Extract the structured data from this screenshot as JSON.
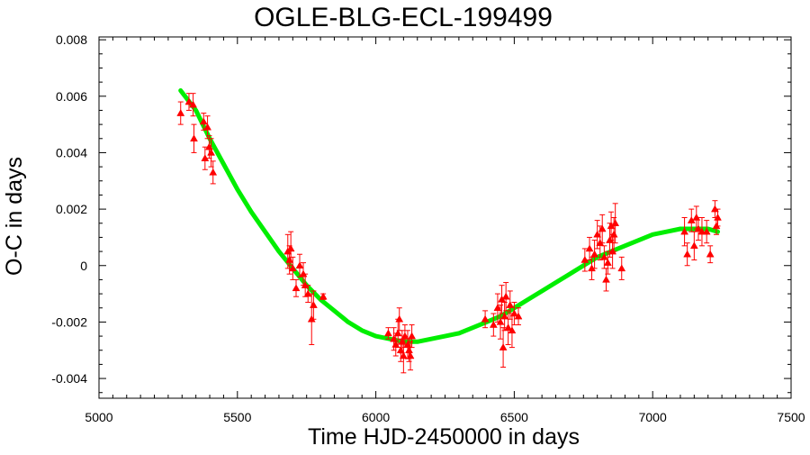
{
  "chart_data": {
    "type": "scatter",
    "title": "OGLE-BLG-ECL-199499",
    "xlabel": "Time HJD-2450000 in days",
    "ylabel": "O-C in days",
    "xlim": [
      5000,
      7500
    ],
    "ylim": [
      -0.0047,
      0.0081
    ],
    "x_ticks": [
      5000,
      5500,
      6000,
      6500,
      7000,
      7500
    ],
    "x_tick_labels": [
      "5000",
      "5500",
      "6000",
      "6500",
      "7000",
      "7500"
    ],
    "y_ticks": [
      0.008,
      0.006,
      0.004,
      0.002,
      0,
      -0.002,
      -0.004
    ],
    "y_tick_labels": [
      "0.008",
      "0.006",
      "0.004",
      "0.002",
      "0",
      "-0.002",
      "-0.004"
    ],
    "grid": false,
    "legend": "none",
    "colors": {
      "points": "#ff0000",
      "fit": "#00ee00"
    },
    "series": [
      {
        "kind": "points-with-errors",
        "points": [
          {
            "x": 5295,
            "y": 0.0054,
            "err": 0.0004
          },
          {
            "x": 5325,
            "y": 0.0058,
            "err": 0.0003
          },
          {
            "x": 5340,
            "y": 0.0057,
            "err": 0.0004
          },
          {
            "x": 5343,
            "y": 0.0045,
            "err": 0.0005
          },
          {
            "x": 5378,
            "y": 0.0051,
            "err": 0.0003
          },
          {
            "x": 5383,
            "y": 0.0038,
            "err": 0.0004
          },
          {
            "x": 5392,
            "y": 0.0049,
            "err": 0.0004
          },
          {
            "x": 5398,
            "y": 0.0042,
            "err": 0.0004
          },
          {
            "x": 5405,
            "y": 0.004,
            "err": 0.0005
          },
          {
            "x": 5412,
            "y": 0.0033,
            "err": 0.0004
          },
          {
            "x": 5682,
            "y": 0.0005,
            "err": 0.0006
          },
          {
            "x": 5688,
            "y": 0.0002,
            "err": 0.0005
          },
          {
            "x": 5693,
            "y": 0.0006,
            "err": 0.0006
          },
          {
            "x": 5700,
            "y": -0.0001,
            "err": 0.0004
          },
          {
            "x": 5712,
            "y": -0.0008,
            "err": 0.0003
          },
          {
            "x": 5725,
            "y": 0.0,
            "err": 0.0004
          },
          {
            "x": 5738,
            "y": -0.0003,
            "err": 0.0004
          },
          {
            "x": 5745,
            "y": -0.0007,
            "err": 0.0004
          },
          {
            "x": 5755,
            "y": -0.001,
            "err": 0.0003
          },
          {
            "x": 5768,
            "y": -0.0019,
            "err": 0.0009
          },
          {
            "x": 5775,
            "y": -0.0014,
            "err": 0.0005
          },
          {
            "x": 5810,
            "y": -0.0011,
            "err": 0.0001
          },
          {
            "x": 6045,
            "y": -0.0024,
            "err": 0.0002
          },
          {
            "x": 6065,
            "y": -0.0026,
            "err": 0.0004
          },
          {
            "x": 6072,
            "y": -0.0028,
            "err": 0.0004
          },
          {
            "x": 6080,
            "y": -0.0024,
            "err": 0.0005
          },
          {
            "x": 6085,
            "y": -0.0019,
            "err": 0.0004
          },
          {
            "x": 6090,
            "y": -0.003,
            "err": 0.0004
          },
          {
            "x": 6095,
            "y": -0.0027,
            "err": 0.0004
          },
          {
            "x": 6100,
            "y": -0.0032,
            "err": 0.0006
          },
          {
            "x": 6105,
            "y": -0.0025,
            "err": 0.0004
          },
          {
            "x": 6115,
            "y": -0.0028,
            "err": 0.0005
          },
          {
            "x": 6120,
            "y": -0.003,
            "err": 0.0004
          },
          {
            "x": 6125,
            "y": -0.0032,
            "err": 0.0005
          },
          {
            "x": 6130,
            "y": -0.0025,
            "err": 0.0004
          },
          {
            "x": 6395,
            "y": -0.0019,
            "err": 0.0003
          },
          {
            "x": 6425,
            "y": -0.0021,
            "err": 0.0004
          },
          {
            "x": 6440,
            "y": -0.0015,
            "err": 0.0005
          },
          {
            "x": 6450,
            "y": -0.002,
            "err": 0.0006
          },
          {
            "x": 6455,
            "y": -0.0012,
            "err": 0.0005
          },
          {
            "x": 6460,
            "y": -0.0029,
            "err": 0.0007
          },
          {
            "x": 6465,
            "y": -0.0018,
            "err": 0.0005
          },
          {
            "x": 6470,
            "y": -0.0011,
            "err": 0.0005
          },
          {
            "x": 6478,
            "y": -0.0022,
            "err": 0.0006
          },
          {
            "x": 6485,
            "y": -0.0014,
            "err": 0.0005
          },
          {
            "x": 6492,
            "y": -0.0023,
            "err": 0.0006
          },
          {
            "x": 6500,
            "y": -0.0017,
            "err": 0.0004
          },
          {
            "x": 6515,
            "y": -0.0018,
            "err": 0.0003
          },
          {
            "x": 6755,
            "y": 0.0002,
            "err": 0.0004
          },
          {
            "x": 6772,
            "y": 0.0006,
            "err": 0.0004
          },
          {
            "x": 6780,
            "y": -0.0001,
            "err": 0.0004
          },
          {
            "x": 6790,
            "y": 0.0004,
            "err": 0.0005
          },
          {
            "x": 6800,
            "y": 0.0011,
            "err": 0.0005
          },
          {
            "x": 6810,
            "y": 0.0008,
            "err": 0.0006
          },
          {
            "x": 6818,
            "y": 0.0013,
            "err": 0.0005
          },
          {
            "x": 6825,
            "y": 0.0003,
            "err": 0.0004
          },
          {
            "x": 6832,
            "y": -0.0005,
            "err": 0.0004
          },
          {
            "x": 6838,
            "y": 0.0001,
            "err": 0.0004
          },
          {
            "x": 6845,
            "y": 0.0009,
            "err": 0.0006
          },
          {
            "x": 6850,
            "y": 0.0014,
            "err": 0.0005
          },
          {
            "x": 6855,
            "y": 0.0005,
            "err": 0.0006
          },
          {
            "x": 6860,
            "y": 0.0011,
            "err": 0.0006
          },
          {
            "x": 6865,
            "y": 0.0015,
            "err": 0.0007
          },
          {
            "x": 6888,
            "y": -0.0001,
            "err": 0.0004
          },
          {
            "x": 7115,
            "y": 0.0012,
            "err": 0.0005
          },
          {
            "x": 7125,
            "y": 0.0004,
            "err": 0.0004
          },
          {
            "x": 7140,
            "y": 0.0016,
            "err": 0.0004
          },
          {
            "x": 7150,
            "y": 0.0007,
            "err": 0.0005
          },
          {
            "x": 7158,
            "y": 0.0017,
            "err": 0.0004
          },
          {
            "x": 7165,
            "y": 0.0013,
            "err": 0.0004
          },
          {
            "x": 7178,
            "y": 0.0012,
            "err": 0.0005
          },
          {
            "x": 7195,
            "y": 0.0012,
            "err": 0.0004
          },
          {
            "x": 7208,
            "y": 0.0004,
            "err": 0.0003
          },
          {
            "x": 7225,
            "y": 0.002,
            "err": 0.0003
          },
          {
            "x": 7230,
            "y": 0.0014,
            "err": 0.0003
          },
          {
            "x": 7235,
            "y": 0.0017,
            "err": 0.0003
          }
        ]
      },
      {
        "kind": "fit-curve",
        "x": [
          5295,
          5350,
          5400,
          5450,
          5500,
          5550,
          5600,
          5650,
          5700,
          5750,
          5800,
          5850,
          5900,
          5950,
          6000,
          6050,
          6100,
          6150,
          6200,
          6250,
          6300,
          6350,
          6400,
          6450,
          6500,
          6550,
          6600,
          6650,
          6700,
          6750,
          6800,
          6850,
          6900,
          6950,
          7000,
          7050,
          7100,
          7150,
          7200,
          7235
        ],
        "y": [
          0.0062,
          0.0055,
          0.0045,
          0.0036,
          0.0027,
          0.0019,
          0.0012,
          0.0005,
          -0.0001,
          -0.0007,
          -0.0012,
          -0.0016,
          -0.002,
          -0.0023,
          -0.0025,
          -0.0026,
          -0.0027,
          -0.0027,
          -0.0026,
          -0.0025,
          -0.0024,
          -0.0022,
          -0.002,
          -0.0018,
          -0.0015,
          -0.0012,
          -0.0009,
          -0.0006,
          -0.0003,
          0.0,
          0.0003,
          0.0005,
          0.0007,
          0.0009,
          0.0011,
          0.0012,
          0.0013,
          0.0013,
          0.0013,
          0.0012
        ]
      }
    ]
  }
}
